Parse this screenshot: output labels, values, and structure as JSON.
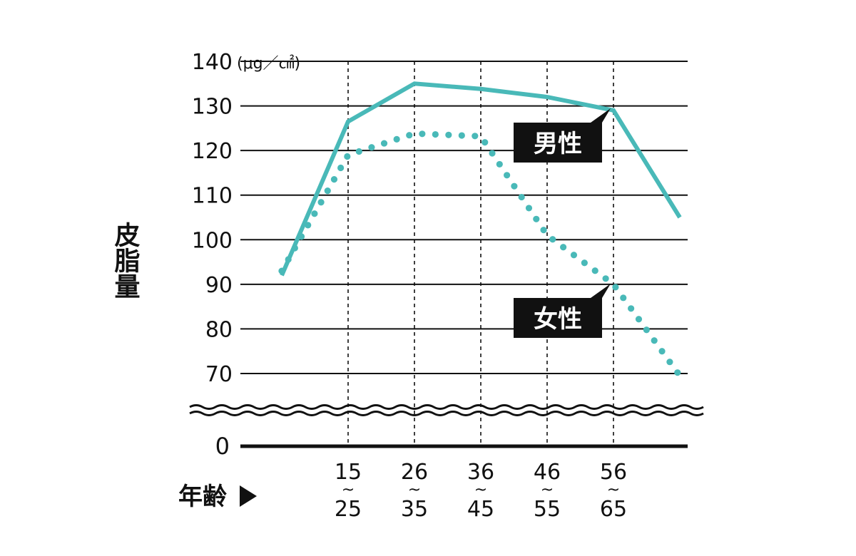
{
  "chart_data": {
    "type": "line",
    "unit": "(μg／㎠)",
    "ylabel": "皮脂量",
    "xlabel": "年齢",
    "yticks": [
      140,
      130,
      120,
      110,
      100,
      90,
      80,
      70
    ],
    "zero_label": "0",
    "ylim": [
      70,
      140
    ],
    "axis_break": true,
    "grid": true,
    "categories": [
      {
        "from": "15",
        "to": "25"
      },
      {
        "from": "26",
        "to": "35"
      },
      {
        "from": "36",
        "to": "45"
      },
      {
        "from": "46",
        "to": "55"
      },
      {
        "from": "56",
        "to": "65"
      }
    ],
    "category_separator": "~",
    "series": [
      {
        "name": "男性",
        "style": "solid",
        "color": "#49b9b8",
        "x": [
          0,
          1,
          2,
          3,
          4,
          5,
          6
        ],
        "y": [
          92,
          126.5,
          135,
          133.8,
          132,
          129,
          105
        ]
      },
      {
        "name": "女性",
        "style": "dotted",
        "color": "#49b9b8",
        "x": [
          0,
          1,
          2,
          3,
          4,
          5,
          6
        ],
        "y": [
          93,
          119,
          123.8,
          123.2,
          101,
          90,
          69.5
        ]
      }
    ]
  }
}
